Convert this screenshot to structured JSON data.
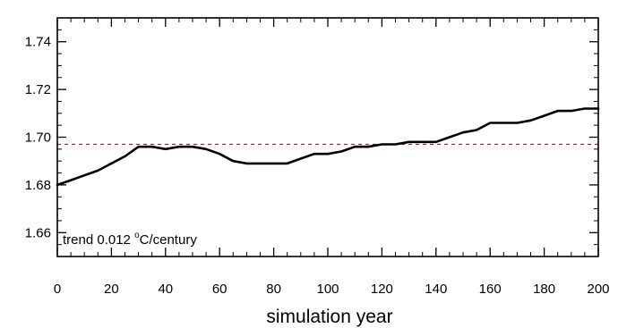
{
  "chart_data": {
    "type": "line",
    "xlabel": "simulation year",
    "ylabel": "",
    "xlim": [
      0,
      200
    ],
    "ylim": [
      1.65,
      1.75
    ],
    "xticks": [
      0,
      20,
      40,
      60,
      80,
      100,
      120,
      140,
      160,
      180,
      200
    ],
    "xtick_labels": [
      "0",
      "20",
      "40",
      "60",
      "80",
      "100",
      "120",
      "140",
      "160",
      "180",
      "200"
    ],
    "yticks": [
      1.66,
      1.68,
      1.7,
      1.72,
      1.74
    ],
    "ytick_labels": [
      "1.66",
      "1.68",
      "1.70",
      "1.72",
      "1.74"
    ],
    "grid": false,
    "annotation": {
      "prefix": "trend 0.012 ",
      "sup": "o",
      "suffix": "C/century"
    },
    "reference_line": {
      "y": 1.697,
      "style": "dashed",
      "color": "#ff0000"
    },
    "series": [
      {
        "color": "#000000",
        "x": [
          0,
          5,
          10,
          15,
          20,
          25,
          30,
          35,
          40,
          45,
          50,
          55,
          60,
          65,
          70,
          75,
          80,
          85,
          90,
          95,
          100,
          105,
          110,
          115,
          120,
          125,
          130,
          135,
          140,
          145,
          150,
          155,
          160,
          165,
          170,
          175,
          180,
          185,
          190,
          195,
          200
        ],
        "y": [
          1.68,
          1.682,
          1.684,
          1.686,
          1.689,
          1.692,
          1.696,
          1.696,
          1.695,
          1.696,
          1.696,
          1.695,
          1.693,
          1.69,
          1.689,
          1.689,
          1.689,
          1.689,
          1.691,
          1.693,
          1.693,
          1.694,
          1.696,
          1.696,
          1.697,
          1.697,
          1.698,
          1.698,
          1.698,
          1.7,
          1.702,
          1.703,
          1.706,
          1.706,
          1.706,
          1.707,
          1.709,
          1.711,
          1.711,
          1.712,
          1.712
        ]
      }
    ]
  }
}
